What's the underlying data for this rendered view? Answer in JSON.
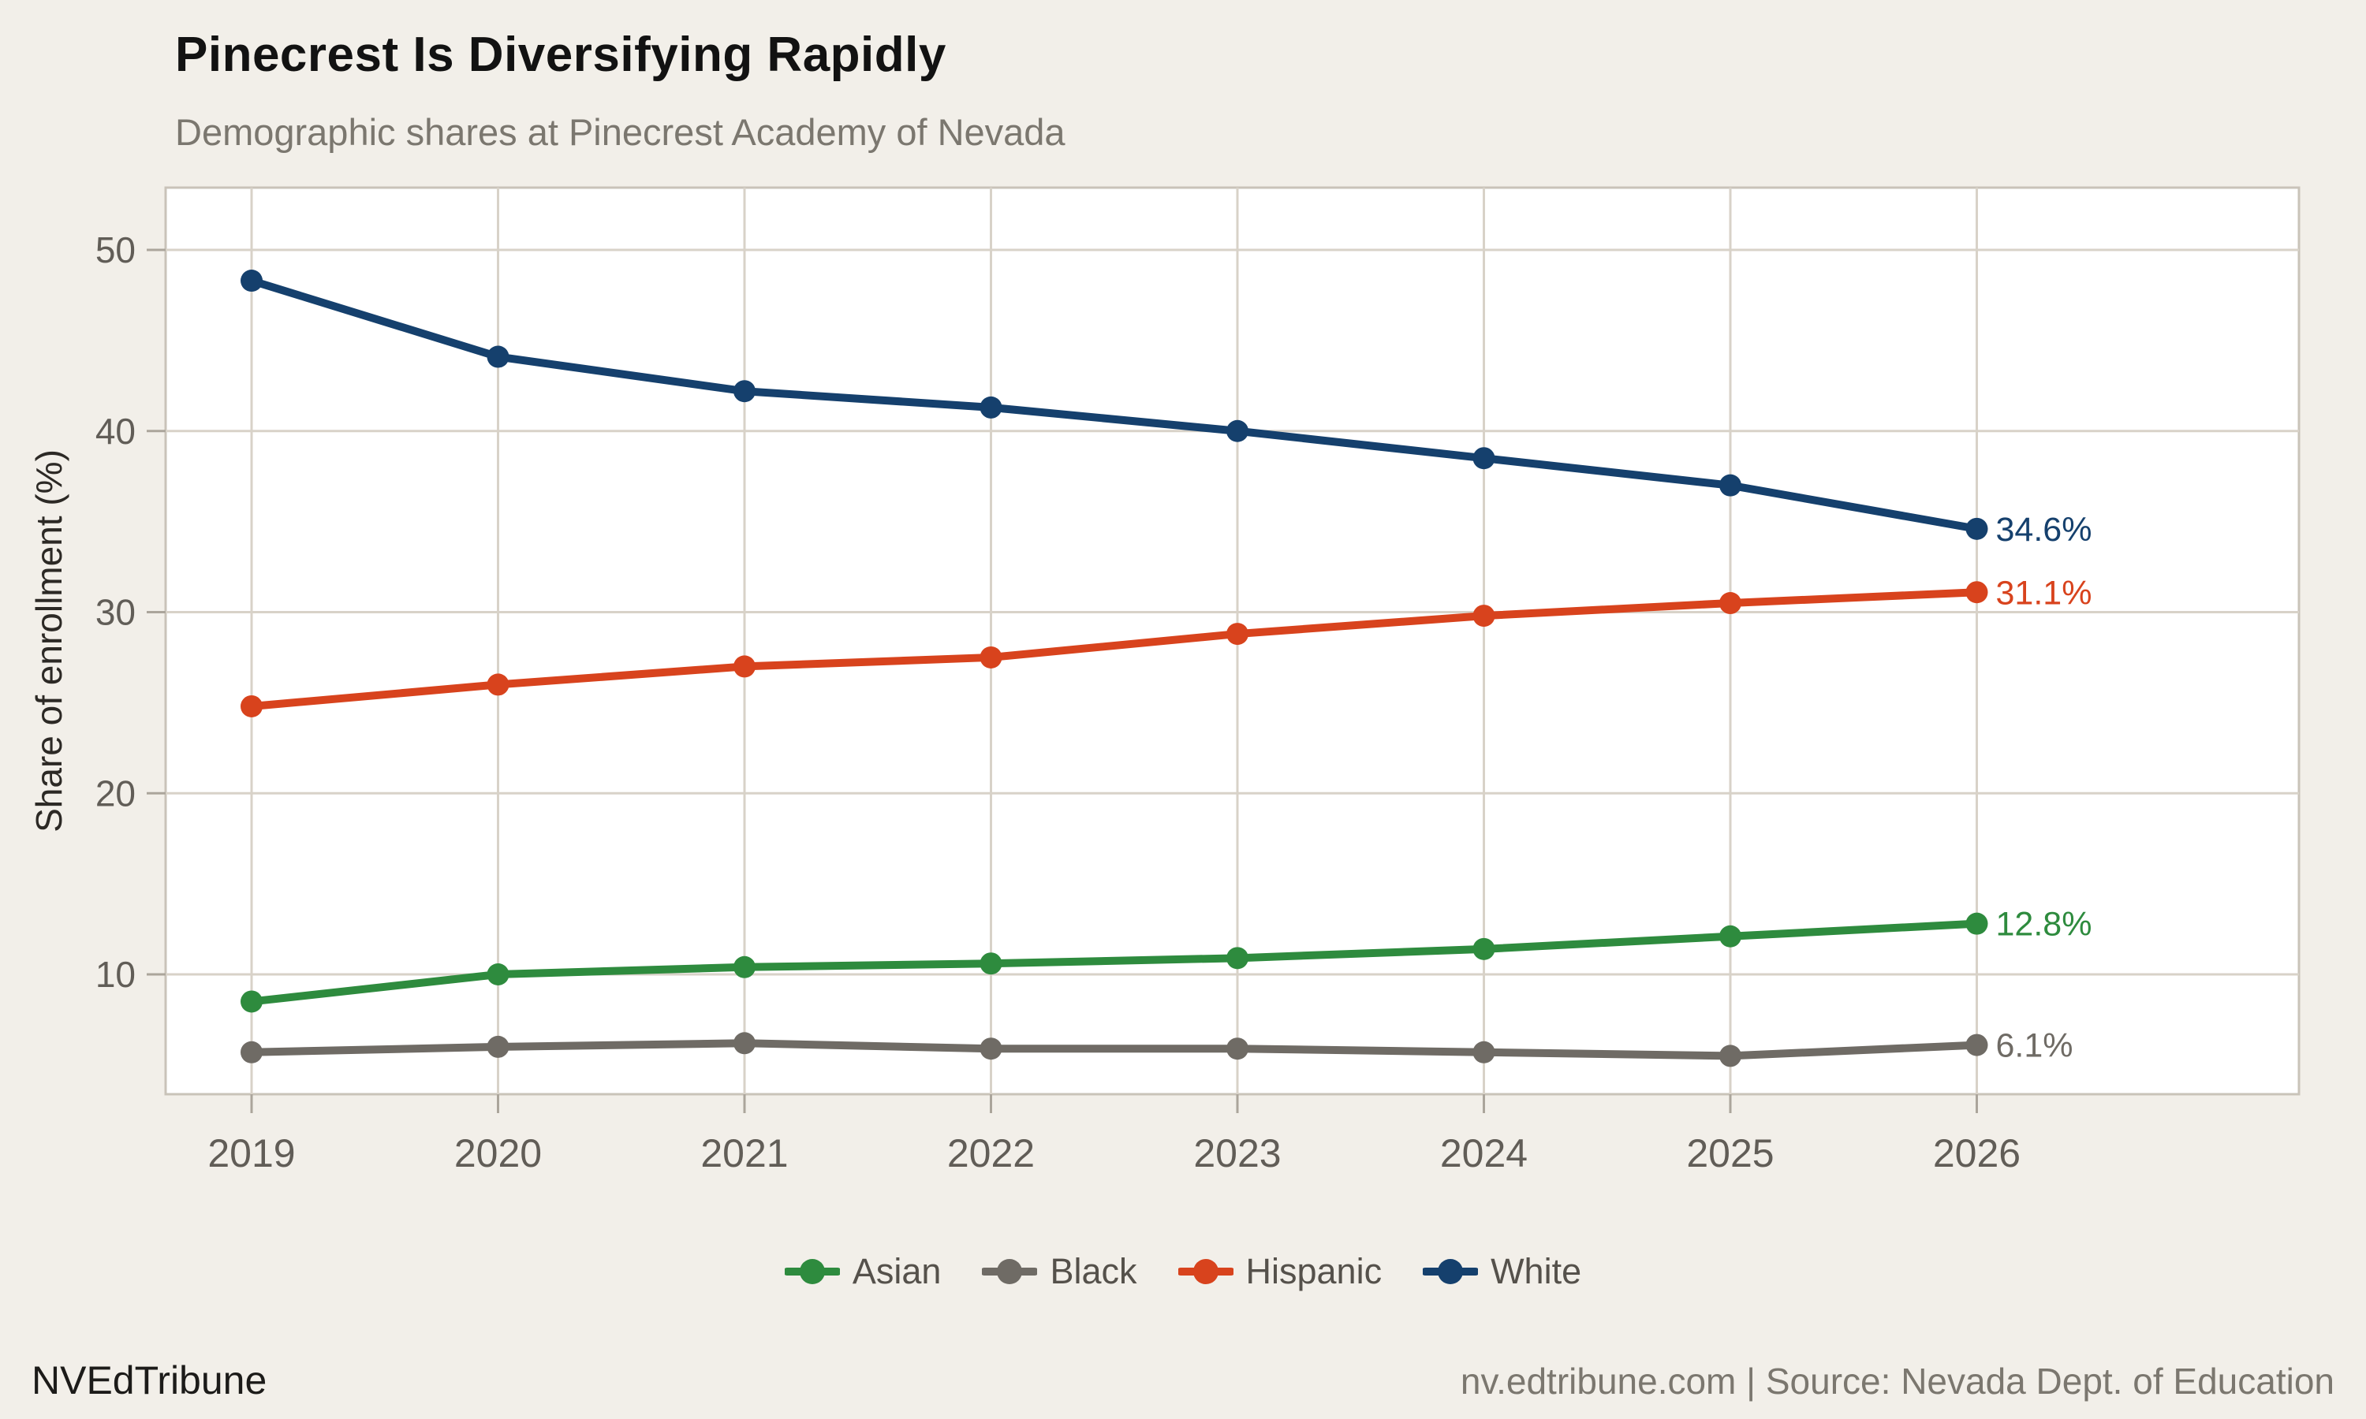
{
  "header": {
    "title": "Pinecrest Is Diversifying Rapidly",
    "subtitle": "Demographic shares at Pinecrest Academy of Nevada"
  },
  "chart_data": {
    "type": "line",
    "title": "Pinecrest Is Diversifying Rapidly",
    "subtitle": "Demographic shares at Pinecrest Academy of Nevada",
    "xlabel": "",
    "ylabel": "Share of enrollment (%)",
    "x": [
      2019,
      2020,
      2021,
      2022,
      2023,
      2024,
      2025,
      2026
    ],
    "y_ticks": [
      50,
      40,
      30,
      20,
      10
    ],
    "ylim": [
      3.5,
      53.5
    ],
    "grid": true,
    "legend_position": "bottom",
    "series": [
      {
        "name": "Asian",
        "color": "#2e8b3e",
        "end_label": "12.8%",
        "values": [
          8.5,
          10.0,
          10.4,
          10.6,
          10.9,
          11.4,
          12.1,
          12.8
        ]
      },
      {
        "name": "Black",
        "color": "#6f6b65",
        "end_label": "6.1%",
        "values": [
          5.7,
          6.0,
          6.2,
          5.9,
          5.9,
          5.7,
          5.5,
          6.1
        ]
      },
      {
        "name": "Hispanic",
        "color": "#d8431d",
        "end_label": "31.1%",
        "values": [
          24.8,
          26.0,
          27.0,
          27.5,
          28.8,
          29.8,
          30.5,
          31.1
        ]
      },
      {
        "name": "White",
        "color": "#15406d",
        "end_label": "34.6%",
        "values": [
          48.3,
          44.1,
          42.2,
          41.3,
          40.0,
          38.5,
          37.0,
          34.6
        ]
      }
    ]
  },
  "footer": {
    "brand": "NVEdTribune",
    "source": "nv.edtribune.com | Source: Nevada Dept. of Education"
  },
  "colors": {
    "background": "#f2efe9",
    "panel": "#ffffff",
    "grid": "#d8d2c8",
    "panel_border": "#c9c3b9",
    "tick_mark": "#aba59b",
    "tick_label": "#615d57",
    "axis_title": "#2c2925"
  }
}
